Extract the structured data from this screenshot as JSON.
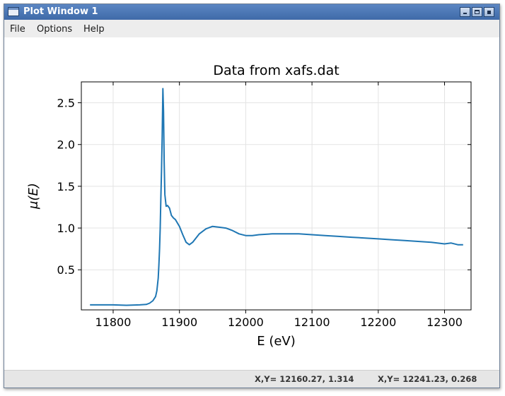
{
  "window": {
    "title": "Plot Window 1",
    "icon": "window-app-icon",
    "controls": [
      "minimize-icon",
      "maximize-icon",
      "close-icon"
    ]
  },
  "menu": {
    "file": "File",
    "options": "Options",
    "help": "Help"
  },
  "status": {
    "readout_1": "X,Y= 12160.27, 1.314",
    "readout_2": "X,Y= 12241.23, 0.268"
  },
  "colors": {
    "line": "#1f77b4",
    "titlebar": "#4a76b6",
    "grid": "#e3e3e3"
  },
  "chart_data": {
    "type": "line",
    "title": "Data from xafs.dat",
    "xlabel": "E (eV)",
    "ylabel": "μ(E)",
    "xlim": [
      11752,
      12340
    ],
    "ylim": [
      0.02,
      2.75
    ],
    "xticks": [
      11800,
      11900,
      12000,
      12100,
      12200,
      12300
    ],
    "yticks": [
      0.5,
      1.0,
      1.5,
      2.0,
      2.5
    ],
    "xtick_labels": [
      "11800",
      "11900",
      "12000",
      "12100",
      "12200",
      "12300"
    ],
    "ytick_labels": [
      "0.5",
      "1.0",
      "1.5",
      "2.0",
      "2.5"
    ],
    "grid": true,
    "series": [
      {
        "x": [
          11765,
          11780,
          11800,
          11820,
          11840,
          11850,
          11855,
          11860,
          11864,
          11866,
          11868,
          11869,
          11870,
          11871,
          11872,
          11873,
          11874,
          11875,
          11876,
          11877,
          11878,
          11880,
          11882,
          11885,
          11888,
          11891,
          11894,
          11897,
          11900,
          11905,
          11910,
          11915,
          11920,
          11925,
          11930,
          11940,
          11950,
          11960,
          11970,
          11980,
          11990,
          12000,
          12010,
          12020,
          12040,
          12060,
          12080,
          12100,
          12120,
          12140,
          12160,
          12180,
          12200,
          12220,
          12240,
          12260,
          12280,
          12300,
          12310,
          12320,
          12328
        ],
        "y": [
          0.08,
          0.08,
          0.08,
          0.075,
          0.08,
          0.085,
          0.1,
          0.13,
          0.18,
          0.25,
          0.4,
          0.55,
          0.75,
          1.0,
          1.35,
          1.7,
          2.1,
          2.67,
          2.4,
          1.8,
          1.4,
          1.26,
          1.27,
          1.24,
          1.15,
          1.12,
          1.1,
          1.06,
          1.02,
          0.92,
          0.83,
          0.8,
          0.83,
          0.88,
          0.93,
          0.99,
          1.02,
          1.01,
          1.0,
          0.97,
          0.93,
          0.91,
          0.91,
          0.92,
          0.93,
          0.93,
          0.93,
          0.92,
          0.91,
          0.9,
          0.89,
          0.88,
          0.87,
          0.86,
          0.85,
          0.84,
          0.83,
          0.81,
          0.82,
          0.8,
          0.8
        ]
      }
    ]
  }
}
